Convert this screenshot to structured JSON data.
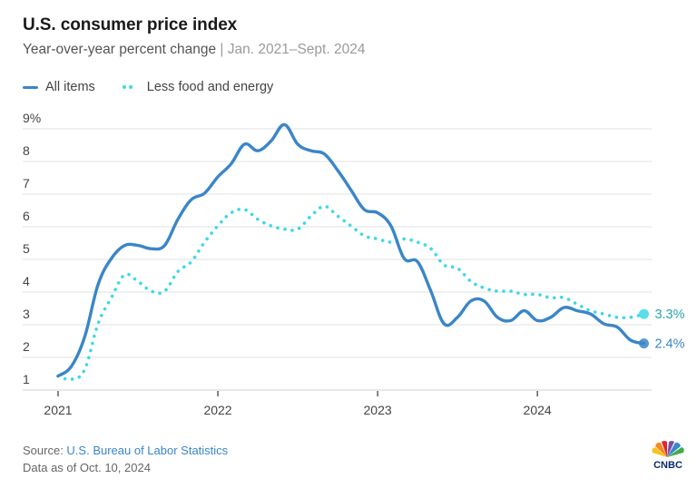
{
  "header": {
    "title": "U.S. consumer price index",
    "subtitle": "Year-over-year percent change",
    "separator": " | ",
    "range": "Jan. 2021–Sept. 2024"
  },
  "legend": {
    "all_items": "All items",
    "core": "Less food and energy"
  },
  "footer": {
    "source_label": "Source: ",
    "source_link": "U.S. Bureau of Labor Statistics",
    "data_as_of": "Data as of Oct. 10, 2024"
  },
  "logo": {
    "text": "CNBC",
    "icon": "peacock-icon"
  },
  "colors": {
    "all_items": "#3a86c8",
    "core": "#40d8e6",
    "core_label": "#2aa3ad",
    "grid": "#e0e0e0",
    "axis_text": "#444444"
  },
  "chart_data": {
    "type": "line",
    "title": "U.S. consumer price index",
    "subtitle": "Year-over-year percent change | Jan. 2021–Sept. 2024",
    "xlabel": "",
    "ylabel": "",
    "x_start": "2021-01",
    "x_end": "2024-09",
    "x_ticks": [
      "2021",
      "2022",
      "2023",
      "2024"
    ],
    "y_ticks": [
      "1",
      "2",
      "3",
      "4",
      "5",
      "6",
      "7",
      "8",
      "9%"
    ],
    "ylim": [
      1,
      9
    ],
    "grid": true,
    "legend_position": "top-left",
    "series": [
      {
        "name": "All items",
        "style": "solid",
        "end_label": "2.4%",
        "values": [
          1.4,
          1.7,
          2.6,
          4.2,
          5.0,
          5.4,
          5.4,
          5.3,
          5.4,
          6.2,
          6.8,
          7.0,
          7.5,
          7.9,
          8.5,
          8.3,
          8.6,
          9.1,
          8.5,
          8.3,
          8.2,
          7.7,
          7.1,
          6.5,
          6.4,
          6.0,
          5.0,
          4.9,
          4.0,
          3.0,
          3.2,
          3.7,
          3.7,
          3.2,
          3.1,
          3.4,
          3.1,
          3.2,
          3.5,
          3.4,
          3.3,
          3.0,
          2.9,
          2.5,
          2.4
        ]
      },
      {
        "name": "Less food and energy",
        "style": "dotted",
        "end_label": "3.3%",
        "values": [
          1.4,
          1.3,
          1.6,
          3.0,
          3.8,
          4.5,
          4.3,
          4.0,
          4.0,
          4.6,
          4.9,
          5.5,
          6.0,
          6.4,
          6.5,
          6.2,
          6.0,
          5.9,
          5.9,
          6.3,
          6.6,
          6.3,
          6.0,
          5.7,
          5.6,
          5.5,
          5.6,
          5.5,
          5.3,
          4.8,
          4.7,
          4.3,
          4.1,
          4.0,
          4.0,
          3.9,
          3.9,
          3.8,
          3.8,
          3.6,
          3.4,
          3.3,
          3.2,
          3.2,
          3.3
        ]
      }
    ]
  }
}
